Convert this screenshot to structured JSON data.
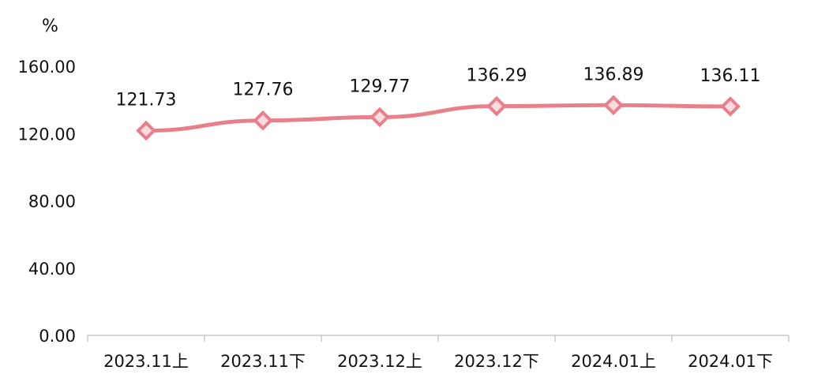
{
  "chart_data": {
    "type": "line",
    "title": "",
    "ylabel": "%",
    "xlabel": "",
    "categories": [
      "2023.11上",
      "2023.11下",
      "2023.12上",
      "2023.12下",
      "2024.01上",
      "2024.01下"
    ],
    "series": [
      {
        "values": [
          121.73,
          127.76,
          129.77,
          136.29,
          136.89,
          136.11
        ],
        "labels": [
          "121.73",
          "127.76",
          "129.77",
          "136.29",
          "136.89",
          "136.11"
        ]
      }
    ],
    "ylim": [
      0,
      160
    ],
    "yticks": [
      "0.00",
      "40.00",
      "80.00",
      "120.00",
      "160.00"
    ],
    "grid": false,
    "marker": "diamond",
    "colors": {
      "line": "#e8808c",
      "marker_fill": "#fadbe0",
      "axis": "#c8c8c8"
    }
  }
}
